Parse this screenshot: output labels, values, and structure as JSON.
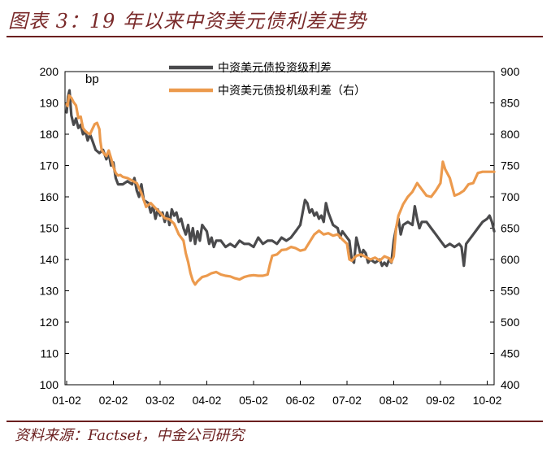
{
  "title": "图表 3：19 年以来中资美元债利差走势",
  "source": "资料来源：Factset，中金公司研究",
  "chart_data": {
    "type": "line",
    "unit_label": "bp",
    "x_tick_labels": [
      "01-02",
      "02-02",
      "03-02",
      "04-02",
      "05-02",
      "06-02",
      "07-02",
      "08-02",
      "09-02",
      "10-02"
    ],
    "x_domain": [
      0,
      9.3
    ],
    "y_left": {
      "min": 100,
      "max": 200,
      "step": 10
    },
    "y_right": {
      "min": 400,
      "max": 900,
      "step": 50
    },
    "legend_position": "top-center",
    "series": [
      {
        "name": "中资美元债投资级利差",
        "axis": "left",
        "color": "#4a4a4c",
        "points": [
          [
            0.0,
            187
          ],
          [
            0.03,
            192
          ],
          [
            0.06,
            194
          ],
          [
            0.1,
            186
          ],
          [
            0.15,
            183
          ],
          [
            0.2,
            185
          ],
          [
            0.25,
            182
          ],
          [
            0.3,
            183
          ],
          [
            0.35,
            180
          ],
          [
            0.4,
            181
          ],
          [
            0.45,
            178
          ],
          [
            0.5,
            180
          ],
          [
            0.55,
            178
          ],
          [
            0.62,
            175
          ],
          [
            0.7,
            174
          ],
          [
            0.78,
            175
          ],
          [
            0.85,
            172
          ],
          [
            0.9,
            174
          ],
          [
            0.95,
            170
          ],
          [
            1.0,
            171
          ],
          [
            1.05,
            166
          ],
          [
            1.1,
            164
          ],
          [
            1.2,
            164
          ],
          [
            1.3,
            165
          ],
          [
            1.4,
            164
          ],
          [
            1.45,
            166
          ],
          [
            1.5,
            162
          ],
          [
            1.55,
            160
          ],
          [
            1.6,
            164
          ],
          [
            1.65,
            159
          ],
          [
            1.75,
            158
          ],
          [
            1.8,
            155
          ],
          [
            1.85,
            157
          ],
          [
            1.9,
            153
          ],
          [
            1.95,
            156
          ],
          [
            2.0,
            154
          ],
          [
            2.05,
            155
          ],
          [
            2.1,
            152
          ],
          [
            2.15,
            155
          ],
          [
            2.2,
            151
          ],
          [
            2.25,
            156
          ],
          [
            2.3,
            154
          ],
          [
            2.35,
            155
          ],
          [
            2.4,
            152
          ],
          [
            2.45,
            153
          ],
          [
            2.5,
            150
          ],
          [
            2.55,
            148
          ],
          [
            2.6,
            151
          ],
          [
            2.65,
            146
          ],
          [
            2.7,
            150
          ],
          [
            2.75,
            145
          ],
          [
            2.8,
            149
          ],
          [
            2.85,
            146
          ],
          [
            2.9,
            151
          ],
          [
            2.95,
            150
          ],
          [
            3.0,
            149
          ],
          [
            3.05,
            145
          ],
          [
            3.1,
            147
          ],
          [
            3.15,
            144
          ],
          [
            3.2,
            146
          ],
          [
            3.3,
            146
          ],
          [
            3.4,
            144
          ],
          [
            3.5,
            145
          ],
          [
            3.6,
            144
          ],
          [
            3.7,
            146
          ],
          [
            3.8,
            145
          ],
          [
            3.9,
            145
          ],
          [
            4.0,
            144
          ],
          [
            4.1,
            147
          ],
          [
            4.2,
            145
          ],
          [
            4.3,
            146
          ],
          [
            4.4,
            146
          ],
          [
            4.5,
            145
          ],
          [
            4.6,
            147
          ],
          [
            4.7,
            146
          ],
          [
            4.8,
            147
          ],
          [
            4.85,
            148
          ],
          [
            4.9,
            149
          ],
          [
            4.95,
            150
          ],
          [
            5.0,
            151
          ],
          [
            5.05,
            155
          ],
          [
            5.1,
            159
          ],
          [
            5.15,
            158
          ],
          [
            5.2,
            155
          ],
          [
            5.25,
            156
          ],
          [
            5.3,
            154
          ],
          [
            5.35,
            155
          ],
          [
            5.4,
            153
          ],
          [
            5.45,
            154
          ],
          [
            5.5,
            152
          ],
          [
            5.55,
            158
          ],
          [
            5.6,
            155
          ],
          [
            5.65,
            153
          ],
          [
            5.7,
            151
          ],
          [
            5.8,
            150
          ],
          [
            5.85,
            147
          ],
          [
            5.9,
            149
          ],
          [
            6.0,
            147
          ],
          [
            6.05,
            146
          ],
          [
            6.1,
            140
          ],
          [
            6.15,
            139
          ],
          [
            6.2,
            147
          ],
          [
            6.25,
            144
          ],
          [
            6.3,
            141
          ],
          [
            6.35,
            143
          ],
          [
            6.4,
            142
          ],
          [
            6.45,
            139
          ],
          [
            6.5,
            140
          ],
          [
            6.6,
            139
          ],
          [
            6.7,
            140
          ],
          [
            6.75,
            138
          ],
          [
            6.8,
            139
          ],
          [
            6.85,
            138
          ],
          [
            6.9,
            140
          ],
          [
            6.95,
            139
          ],
          [
            7.0,
            146
          ],
          [
            7.05,
            150
          ],
          [
            7.1,
            153
          ],
          [
            7.15,
            148
          ],
          [
            7.2,
            151
          ],
          [
            7.3,
            152
          ],
          [
            7.4,
            151
          ],
          [
            7.45,
            157
          ],
          [
            7.5,
            153
          ],
          [
            7.55,
            150
          ],
          [
            7.6,
            152
          ],
          [
            7.7,
            152
          ],
          [
            7.8,
            150
          ],
          [
            7.9,
            148
          ],
          [
            8.0,
            146
          ],
          [
            8.05,
            145
          ],
          [
            8.1,
            144
          ],
          [
            8.2,
            145
          ],
          [
            8.3,
            144
          ],
          [
            8.4,
            145
          ],
          [
            8.45,
            144
          ],
          [
            8.5,
            138
          ],
          [
            8.55,
            145
          ],
          [
            8.6,
            146
          ],
          [
            8.7,
            148
          ],
          [
            8.8,
            150
          ],
          [
            8.9,
            152
          ],
          [
            9.0,
            153
          ],
          [
            9.05,
            154
          ],
          [
            9.1,
            152
          ],
          [
            9.15,
            149
          ]
        ]
      },
      {
        "name": "中资美元债投机级利差（右）",
        "axis": "right",
        "color": "#ec9a4d",
        "points": [
          [
            0.0,
            848
          ],
          [
            0.02,
            845
          ],
          [
            0.05,
            862
          ],
          [
            0.1,
            858
          ],
          [
            0.15,
            851
          ],
          [
            0.2,
            846
          ],
          [
            0.25,
            826
          ],
          [
            0.3,
            828
          ],
          [
            0.35,
            810
          ],
          [
            0.4,
            805
          ],
          [
            0.45,
            802
          ],
          [
            0.5,
            800
          ],
          [
            0.55,
            808
          ],
          [
            0.6,
            816
          ],
          [
            0.65,
            818
          ],
          [
            0.7,
            808
          ],
          [
            0.72,
            790
          ],
          [
            0.75,
            775
          ],
          [
            0.8,
            769
          ],
          [
            0.85,
            765
          ],
          [
            0.9,
            774
          ],
          [
            0.95,
            762
          ],
          [
            1.0,
            748
          ],
          [
            1.05,
            738
          ],
          [
            1.1,
            734
          ],
          [
            1.15,
            735
          ],
          [
            1.2,
            732
          ],
          [
            1.3,
            730
          ],
          [
            1.4,
            726
          ],
          [
            1.5,
            722
          ],
          [
            1.6,
            706
          ],
          [
            1.7,
            684
          ],
          [
            1.8,
            690
          ],
          [
            1.9,
            682
          ],
          [
            2.0,
            675
          ],
          [
            2.1,
            666
          ],
          [
            2.2,
            664
          ],
          [
            2.3,
            657
          ],
          [
            2.4,
            640
          ],
          [
            2.5,
            630
          ],
          [
            2.55,
            610
          ],
          [
            2.6,
            596
          ],
          [
            2.65,
            578
          ],
          [
            2.7,
            566
          ],
          [
            2.75,
            560
          ],
          [
            2.8,
            565
          ],
          [
            2.9,
            572
          ],
          [
            3.0,
            574
          ],
          [
            3.1,
            578
          ],
          [
            3.2,
            580
          ],
          [
            3.3,
            576
          ],
          [
            3.4,
            574
          ],
          [
            3.5,
            573
          ],
          [
            3.6,
            570
          ],
          [
            3.7,
            568
          ],
          [
            3.8,
            572
          ],
          [
            3.9,
            574
          ],
          [
            4.0,
            575
          ],
          [
            4.1,
            574
          ],
          [
            4.2,
            574
          ],
          [
            4.3,
            576
          ],
          [
            4.35,
            592
          ],
          [
            4.4,
            606
          ],
          [
            4.5,
            608
          ],
          [
            4.6,
            615
          ],
          [
            4.7,
            616
          ],
          [
            4.8,
            620
          ],
          [
            4.9,
            618
          ],
          [
            5.0,
            614
          ],
          [
            5.1,
            616
          ],
          [
            5.2,
            628
          ],
          [
            5.3,
            640
          ],
          [
            5.4,
            646
          ],
          [
            5.5,
            640
          ],
          [
            5.6,
            642
          ],
          [
            5.7,
            638
          ],
          [
            5.8,
            640
          ],
          [
            5.9,
            632
          ],
          [
            6.0,
            625
          ],
          [
            6.05,
            600
          ],
          [
            6.1,
            598
          ],
          [
            6.2,
            606
          ],
          [
            6.3,
            608
          ],
          [
            6.4,
            604
          ],
          [
            6.5,
            600
          ],
          [
            6.6,
            603
          ],
          [
            6.7,
            598
          ],
          [
            6.8,
            605
          ],
          [
            6.9,
            602
          ],
          [
            6.95,
            596
          ],
          [
            7.0,
            605
          ],
          [
            7.05,
            650
          ],
          [
            7.1,
            670
          ],
          [
            7.2,
            688
          ],
          [
            7.3,
            700
          ],
          [
            7.4,
            708
          ],
          [
            7.5,
            722
          ],
          [
            7.6,
            712
          ],
          [
            7.7,
            702
          ],
          [
            7.8,
            700
          ],
          [
            7.9,
            710
          ],
          [
            8.0,
            722
          ],
          [
            8.05,
            756
          ],
          [
            8.1,
            744
          ],
          [
            8.2,
            730
          ],
          [
            8.3,
            702
          ],
          [
            8.4,
            705
          ],
          [
            8.5,
            710
          ],
          [
            8.6,
            720
          ],
          [
            8.7,
            722
          ],
          [
            8.8,
            738
          ],
          [
            8.9,
            740
          ],
          [
            9.0,
            740
          ],
          [
            9.1,
            740
          ],
          [
            9.15,
            740
          ]
        ]
      }
    ]
  }
}
